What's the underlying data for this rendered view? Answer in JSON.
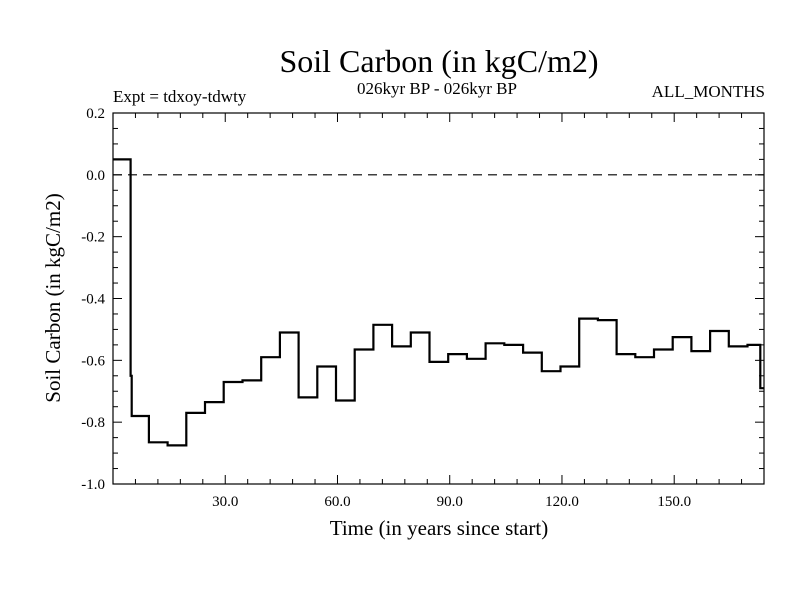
{
  "chart_data": {
    "type": "line",
    "title": "Soil Carbon (in kgC/m2)",
    "subtitle": "026kyr BP - 026kyr BP",
    "left_note": "Expt = tdxoy-tdwty",
    "right_note": "ALL_MONTHS",
    "xlabel": "Time (in years since start)",
    "ylabel": "Soil Carbon (in kgC/m2)",
    "xlim": [
      0,
      174
    ],
    "ylim": [
      -1.0,
      0.2
    ],
    "xticks": [
      30,
      60,
      90,
      120,
      150
    ],
    "xtick_labels": [
      "30.0",
      "60.0",
      "90.0",
      "120.0",
      "150.0"
    ],
    "yticks": [
      0.2,
      0.0,
      -0.2,
      -0.4,
      -0.6,
      -0.8,
      -1.0
    ],
    "ytick_labels": [
      "0.2",
      "0.0",
      "-0.2",
      "-0.4",
      "-0.6",
      "-0.8",
      "-1.0"
    ],
    "reference_line": {
      "y": 0.0,
      "style": "dashed"
    },
    "grid": false,
    "series": [
      {
        "step": "post",
        "x": [
          0,
          4.7,
          5.0,
          9.6,
          14.6,
          19.6,
          24.6,
          29.6,
          34.6,
          39.6,
          44.6,
          49.6,
          54.6,
          59.6,
          64.6,
          69.6,
          74.6,
          79.6,
          84.6,
          89.6,
          94.6,
          99.6,
          104.6,
          109.6,
          114.6,
          119.6,
          124.6,
          129.6,
          134.6,
          139.6,
          144.6,
          149.6,
          154.6,
          159.6,
          164.6,
          169.6,
          173.0,
          174.0
        ],
        "y": [
          0.05,
          -0.65,
          -0.78,
          -0.865,
          -0.875,
          -0.77,
          -0.735,
          -0.67,
          -0.665,
          -0.59,
          -0.51,
          -0.72,
          -0.62,
          -0.73,
          -0.565,
          -0.485,
          -0.555,
          -0.51,
          -0.605,
          -0.58,
          -0.595,
          -0.545,
          -0.55,
          -0.575,
          -0.635,
          -0.62,
          -0.465,
          -0.47,
          -0.58,
          -0.59,
          -0.565,
          -0.525,
          -0.57,
          -0.505,
          -0.555,
          -0.55,
          -0.69,
          -0.69
        ]
      }
    ]
  }
}
